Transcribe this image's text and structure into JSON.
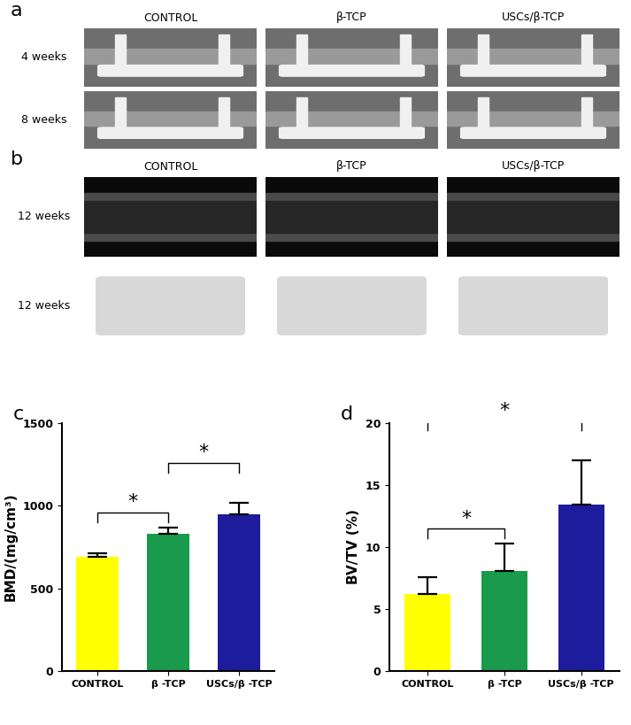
{
  "image_panels": [
    {
      "panel": "a",
      "columns": [
        "CONTROL",
        "β-TCP",
        "USCs/β-TCP"
      ],
      "rows": [
        "4 weeks",
        "8 weeks"
      ]
    },
    {
      "panel": "b",
      "columns": [
        "CONTROL",
        "β-TCP",
        "USCs/β-TCP"
      ],
      "rows": [
        "12 weeks",
        "12 weeks"
      ]
    }
  ],
  "chart_data": [
    {
      "panel": "c",
      "type": "bar",
      "categories": [
        "CONTROL",
        "β -TCP",
        "USCs/β -TCP"
      ],
      "values": [
        690,
        830,
        950
      ],
      "errors": [
        20,
        40,
        70
      ],
      "colors": [
        "#ffff00",
        "#1a9a4c",
        "#1c1c9c"
      ],
      "y_label": "BMD/(mg/cm³)",
      "ylim": [
        0,
        1500
      ],
      "yticks": [
        0,
        500,
        1000,
        1500
      ],
      "significance": [
        {
          "pair": [
            0,
            1
          ],
          "label": "*"
        },
        {
          "pair": [
            1,
            2
          ],
          "label": "*"
        }
      ]
    },
    {
      "panel": "d",
      "type": "bar",
      "categories": [
        "CONTROL",
        "β -TCP",
        "USCs/β -TCP"
      ],
      "values": [
        6.2,
        8.1,
        13.4
      ],
      "errors": [
        1.4,
        2.2,
        3.6
      ],
      "colors": [
        "#ffff00",
        "#1a9a4c",
        "#1c1c9c"
      ],
      "y_label": "BV/TV (%)",
      "ylim": [
        0,
        20
      ],
      "yticks": [
        0,
        5,
        10,
        15,
        20
      ],
      "significance": [
        {
          "pair": [
            0,
            1
          ],
          "label": "*"
        },
        {
          "pair": [
            0,
            2
          ],
          "label": "*"
        }
      ]
    }
  ]
}
